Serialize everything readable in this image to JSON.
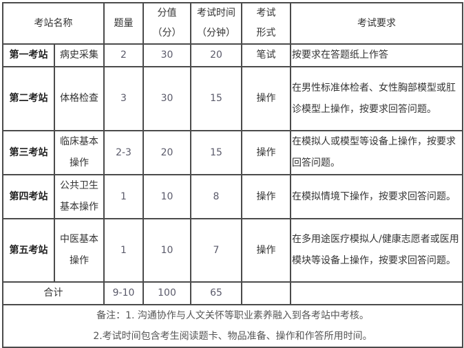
{
  "headers": {
    "name": "考站名称",
    "count": "题量",
    "score": "分值",
    "score_unit": "（分）",
    "time": "考试时间",
    "time_unit": "（分钟）",
    "form1": "考试",
    "form2": "形式",
    "req": "考试要求"
  },
  "rows": [
    {
      "station": "第一考站",
      "subject": "病史采集",
      "count": "2",
      "score": "30",
      "time": "20",
      "form": "笔试",
      "req": "按要求在答题纸上作答"
    },
    {
      "station": "第二考站",
      "subject": "体格检查",
      "count": "3",
      "score": "30",
      "time": "15",
      "form": "操作",
      "req": "在男性标准体检者、女性胸部模型或肛诊模型上操作，按要求回答问题。"
    },
    {
      "station": "第三考站",
      "subject": "临床基本操作",
      "count": "2-3",
      "score": "20",
      "time": "15",
      "form": "操作",
      "req": "在模拟人或模型等设备上操作，按要求回答问题。"
    },
    {
      "station": "第四考站",
      "subject": "公共卫生基本操作",
      "count": "1",
      "score": "10",
      "time": "8",
      "form": "操作",
      "req": "在模拟情境下操作，按要求回答问题。"
    },
    {
      "station": "第五考站",
      "subject": "中医基本操作",
      "count": "1",
      "score": "10",
      "time": "7",
      "form": "操作",
      "req": "在多用途医疗模拟人/健康志愿者或医用模块等设备上操作，按要求回答问题。"
    }
  ],
  "total": {
    "label": "合计",
    "count": "9-10",
    "score": "100",
    "time": "65"
  },
  "notes": [
    "备注：1. 沟通协作与人文关怀等职业素养融入到各考站中考核。",
    "2.考试时间包含考生阅读题卡、物品准备、操作和作答所用时间。"
  ]
}
